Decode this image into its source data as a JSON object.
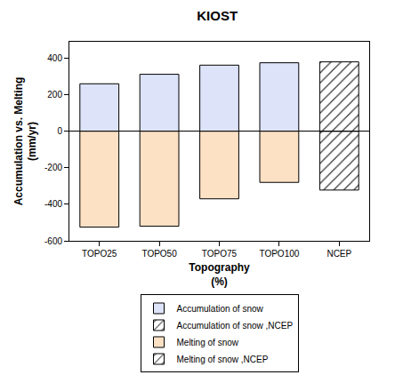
{
  "chart_data": {
    "type": "bar",
    "title": "KIOST",
    "x_label": "Topography\n(%)",
    "y_label": "Accumulation vs. Melting\n(mm/yr)",
    "categories": [
      "TOPO25",
      "TOPO50",
      "TOPO75",
      "TOPO100",
      "NCEP"
    ],
    "stacked": true,
    "grid": false,
    "legend": "bottom",
    "ylim": [
      -600,
      490
    ],
    "yticks": [
      -600,
      -400,
      -200,
      0,
      200,
      400
    ],
    "series": [
      {
        "name": "Accumulation of snow",
        "color": "#dde3f8",
        "marker": "solid",
        "values": [
          260,
          312,
          362,
          375,
          null
        ]
      },
      {
        "name": "Accumulation of snow ,NCEP",
        "color": "#7d9de6",
        "marker": "hatch",
        "values": [
          null,
          null,
          null,
          null,
          380
        ]
      },
      {
        "name": "Melting of snow",
        "color": "#fde1c4",
        "marker": "solid",
        "values": [
          -525,
          -520,
          -370,
          -280,
          null
        ]
      },
      {
        "name": "Melting of snow ,NCEP",
        "color": "#f5b153",
        "marker": "hatch",
        "values": [
          null,
          null,
          null,
          null,
          -322
        ]
      }
    ]
  }
}
